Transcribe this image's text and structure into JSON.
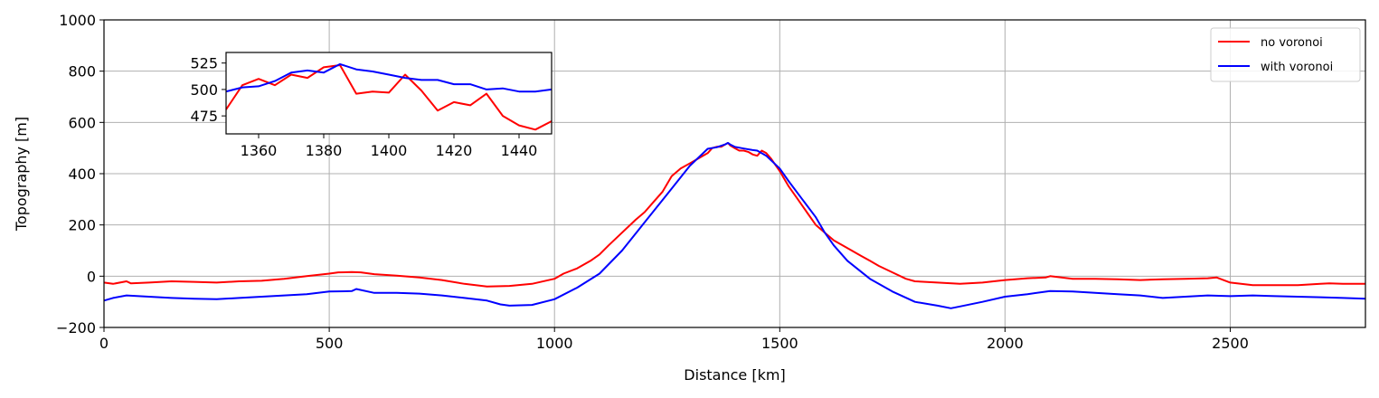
{
  "chart_data": [
    {
      "type": "line",
      "title": "",
      "xlabel": "Distance [km]",
      "ylabel": "Topography [m]",
      "xlim": [
        0,
        2800
      ],
      "ylim": [
        -200,
        1000
      ],
      "xticks": [
        0,
        500,
        1000,
        1500,
        2000,
        2500
      ],
      "yticks": [
        -200,
        0,
        200,
        400,
        600,
        800,
        1000
      ],
      "grid": true,
      "legend_position": "top-right",
      "series": [
        {
          "name": "no voronoi",
          "color": "#ff0000",
          "x": [
            0,
            20,
            50,
            60,
            100,
            150,
            200,
            250,
            300,
            350,
            400,
            450,
            500,
            520,
            550,
            570,
            600,
            650,
            700,
            750,
            800,
            850,
            900,
            950,
            1000,
            1020,
            1050,
            1080,
            1100,
            1120,
            1150,
            1180,
            1200,
            1220,
            1240,
            1250,
            1260,
            1280,
            1300,
            1320,
            1340,
            1350,
            1360,
            1370,
            1380,
            1385,
            1390,
            1400,
            1405,
            1410,
            1420,
            1430,
            1440,
            1450,
            1460,
            1470,
            1480,
            1500,
            1520,
            1540,
            1560,
            1580,
            1600,
            1620,
            1650,
            1680,
            1700,
            1720,
            1750,
            1780,
            1800,
            1850,
            1900,
            1950,
            2000,
            2050,
            2090,
            2100,
            2150,
            2200,
            2250,
            2300,
            2350,
            2400,
            2450,
            2470,
            2500,
            2550,
            2600,
            2650,
            2700,
            2720,
            2750,
            2800
          ],
          "y": [
            -25,
            -30,
            -20,
            -28,
            -25,
            -20,
            -22,
            -25,
            -20,
            -18,
            -10,
            0,
            10,
            15,
            16,
            15,
            8,
            2,
            -5,
            -15,
            -30,
            -40,
            -38,
            -30,
            -10,
            10,
            30,
            60,
            85,
            120,
            170,
            220,
            250,
            290,
            330,
            360,
            390,
            420,
            440,
            460,
            480,
            500,
            505,
            505,
            515,
            520,
            510,
            500,
            495,
            490,
            490,
            485,
            475,
            470,
            490,
            480,
            460,
            410,
            350,
            300,
            250,
            200,
            170,
            140,
            110,
            80,
            60,
            40,
            15,
            -10,
            -20,
            -25,
            -30,
            -25,
            -15,
            -8,
            -5,
            0,
            -10,
            -10,
            -12,
            -15,
            -12,
            -10,
            -8,
            -5,
            -25,
            -35,
            -35,
            -35,
            -30,
            -28,
            -30,
            -30
          ]
        },
        {
          "name": "with voronoi",
          "color": "#0000ff",
          "x": [
            0,
            20,
            50,
            100,
            150,
            200,
            250,
            300,
            350,
            400,
            450,
            500,
            550,
            560,
            600,
            650,
            700,
            750,
            800,
            850,
            880,
            900,
            950,
            1000,
            1050,
            1100,
            1150,
            1200,
            1250,
            1300,
            1340,
            1360,
            1380,
            1385,
            1390,
            1400,
            1420,
            1440,
            1450,
            1470,
            1500,
            1520,
            1550,
            1580,
            1600,
            1620,
            1650,
            1700,
            1750,
            1800,
            1850,
            1880,
            1900,
            1950,
            2000,
            2050,
            2100,
            2150,
            2200,
            2250,
            2300,
            2350,
            2400,
            2450,
            2500,
            2550,
            2600,
            2650,
            2700,
            2750,
            2800
          ],
          "y": [
            -95,
            -85,
            -75,
            -80,
            -85,
            -88,
            -90,
            -85,
            -80,
            -75,
            -70,
            -60,
            -58,
            -50,
            -65,
            -65,
            -68,
            -75,
            -85,
            -95,
            -110,
            -115,
            -112,
            -90,
            -45,
            10,
            100,
            210,
            320,
            430,
            497,
            503,
            515,
            520,
            514,
            505,
            498,
            492,
            490,
            470,
            420,
            370,
            300,
            230,
            170,
            120,
            60,
            -10,
            -60,
            -100,
            -115,
            -125,
            -118,
            -100,
            -80,
            -70,
            -58,
            -60,
            -65,
            -70,
            -75,
            -85,
            -80,
            -75,
            -78,
            -75,
            -78,
            -80,
            -82,
            -85,
            -88
          ]
        }
      ]
    },
    {
      "type": "line",
      "title": "",
      "xlabel": "",
      "ylabel": "",
      "xlim": [
        1350,
        1450
      ],
      "ylim": [
        458,
        535
      ],
      "xticks": [
        1360,
        1380,
        1400,
        1420,
        1440
      ],
      "yticks": [
        475,
        500,
        525
      ],
      "grid": false,
      "series": [
        {
          "name": "no voronoi",
          "color": "#ff0000",
          "x": [
            1350,
            1355,
            1360,
            1365,
            1370,
            1375,
            1380,
            1385,
            1390,
            1395,
            1400,
            1405,
            1410,
            1415,
            1420,
            1425,
            1430,
            1435,
            1440,
            1445,
            1450
          ],
          "y": [
            481,
            504,
            510,
            504,
            514,
            511,
            521,
            523,
            496,
            498,
            497,
            514,
            499,
            480,
            488,
            485,
            496,
            475,
            466,
            462,
            470
          ]
        },
        {
          "name": "with voronoi",
          "color": "#0000ff",
          "x": [
            1350,
            1355,
            1360,
            1365,
            1370,
            1375,
            1380,
            1385,
            1390,
            1395,
            1400,
            1405,
            1410,
            1415,
            1420,
            1425,
            1430,
            1435,
            1440,
            1445,
            1450
          ],
          "y": [
            498,
            502,
            503,
            508,
            516,
            518,
            516,
            524,
            519,
            517,
            514,
            511,
            509,
            509,
            505,
            505,
            500,
            501,
            498,
            498,
            500
          ]
        }
      ]
    }
  ]
}
